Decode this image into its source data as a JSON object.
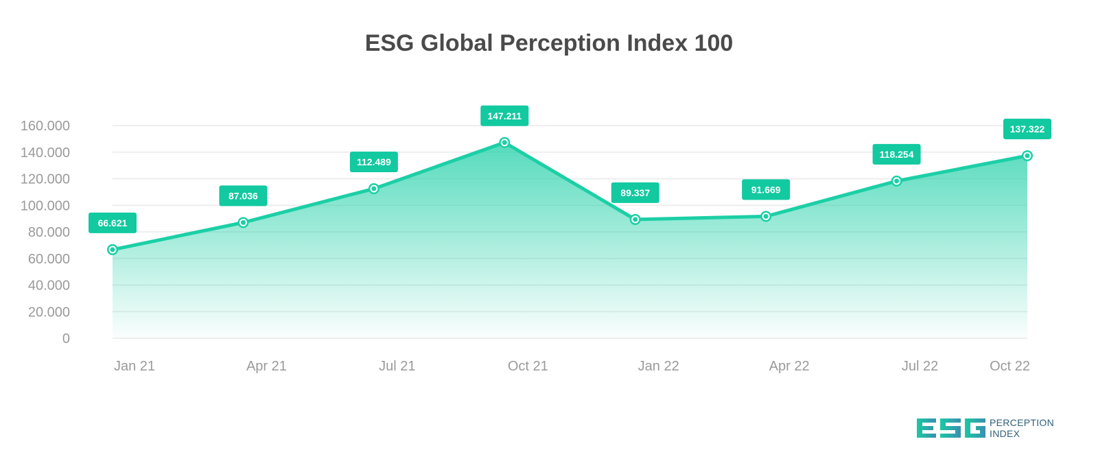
{
  "title": "ESG Global Perception Index 100",
  "colors": {
    "accent": "#1ccfa6",
    "label_bg": "#12c9a0",
    "grid": "#eeeeee",
    "axis_text": "#9a9a9a"
  },
  "chart_data": {
    "type": "area",
    "title": "ESG Global Perception Index 100",
    "xlabel": "",
    "ylabel": "",
    "categories": [
      "Jan 21",
      "Apr 21",
      "Jul 21",
      "Oct 21",
      "Jan 22",
      "Apr 22",
      "Jul 22",
      "Oct 22"
    ],
    "values": [
      66.621,
      87.036,
      112.489,
      147.211,
      89.337,
      91.669,
      118.254,
      137.322
    ],
    "value_labels": [
      "66.621",
      "87.036",
      "112.489",
      "147.211",
      "89.337",
      "91.669",
      "118.254",
      "137.322"
    ],
    "ylim": [
      0,
      160
    ],
    "yticks": [
      0,
      20,
      40,
      60,
      80,
      100,
      120,
      140,
      160
    ],
    "ytick_labels": [
      "0",
      "20.000",
      "40.000",
      "60.000",
      "80.000",
      "100.000",
      "120.000",
      "140.000",
      "160.000"
    ],
    "grid": true,
    "legend": "none"
  },
  "logo": {
    "mark": "ESG",
    "line1": "PERCEPTION",
    "line2": "INDEX"
  }
}
